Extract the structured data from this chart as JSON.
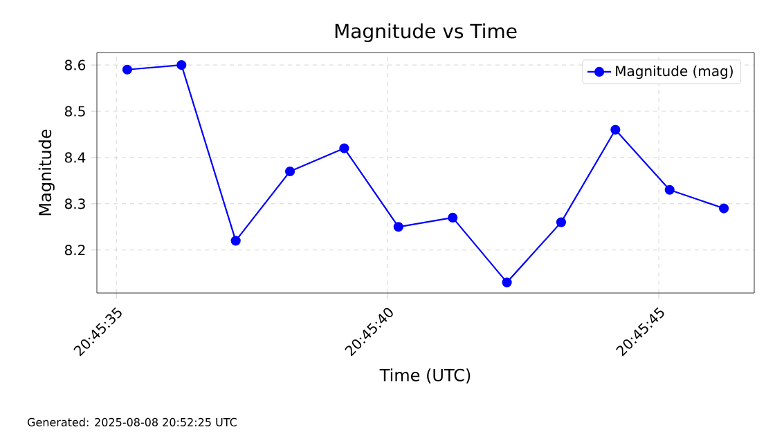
{
  "chart_data": {
    "type": "line",
    "title": "Magnitude vs Time",
    "xlabel": "Time (UTC)",
    "ylabel": "Magnitude",
    "x": [
      20.7597778,
      20.7600556,
      20.7603333,
      20.7606111,
      20.7608889,
      20.7611667,
      20.7614444,
      20.7617222,
      20.762,
      20.7622778,
      20.7625556,
      20.7628333
    ],
    "series": [
      {
        "name": "Magnitude (mag)",
        "color": "#0000ff",
        "values": [
          8.59,
          8.6,
          8.22,
          8.37,
          8.42,
          8.25,
          8.27,
          8.13,
          8.26,
          8.46,
          8.33,
          8.29
        ]
      }
    ],
    "xlim": [
      20.7596222,
      20.7629889
    ],
    "ylim": [
      8.107,
      8.627
    ],
    "xticks": [
      {
        "value": 20.7597222,
        "label": "20:45:35"
      },
      {
        "value": 20.7611111,
        "label": "20:45:40"
      },
      {
        "value": 20.7625,
        "label": "20:45:45"
      }
    ],
    "yticks": [
      8.2,
      8.3,
      8.4,
      8.5,
      8.6
    ],
    "grid": true,
    "legend": "top right",
    "marker": "circle",
    "line_style": "solid",
    "annotations": [
      "Generated: 2025-08-08 20:52:25 UTC"
    ]
  }
}
